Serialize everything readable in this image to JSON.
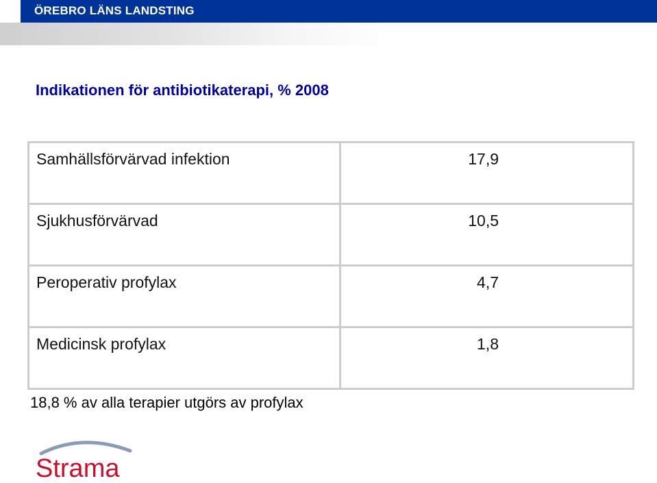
{
  "header": {
    "org_name": "ÖREBRO LÄNS LANDSTING"
  },
  "slide": {
    "title": "Indikationen för antibiotikaterapi, % 2008",
    "rows": [
      {
        "label": "Samhällsförvärvad infektion",
        "value": "17,9"
      },
      {
        "label": "Sjukhusförvärvad",
        "value": "10,5"
      },
      {
        "label": "Peroperativ profylax",
        "value": "4,7"
      },
      {
        "label": "Medicinsk profylax",
        "value": "1,8"
      }
    ],
    "footnote": "18,8 % av alla terapier utgörs av profylax"
  },
  "logo": {
    "text": "Strama",
    "color": "#c8102e",
    "arc_color": "#8a9bb5"
  },
  "colors": {
    "header_bar": "#003399",
    "title": "#000099",
    "table_border": "#cccccc"
  }
}
